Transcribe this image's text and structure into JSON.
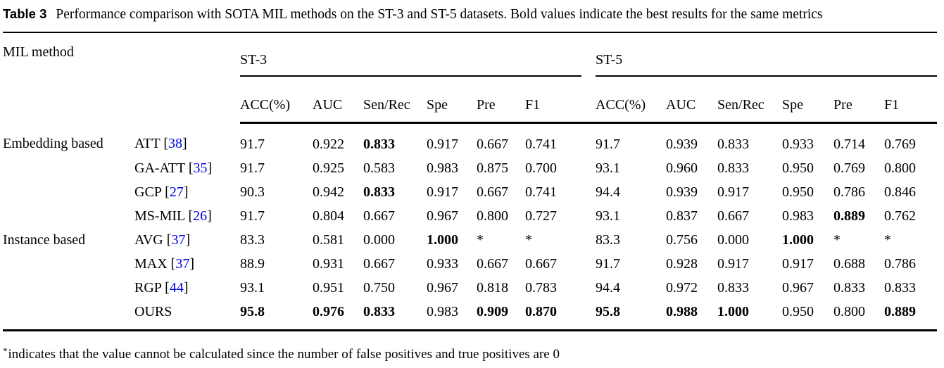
{
  "caption": {
    "label": "Table 3",
    "text": "Performance comparison with SOTA MIL methods on the ST-3 and ST-5 datasets. Bold values indicate the best results for the same metrics"
  },
  "header": {
    "col1": "MIL method",
    "groups": [
      {
        "label": "ST-3",
        "metrics": [
          "ACC(%)",
          "AUC",
          "Sen/Rec",
          "Spe",
          "Pre",
          "F1"
        ]
      },
      {
        "label": "ST-5",
        "metrics": [
          "ACC(%)",
          "AUC",
          "Sen/Rec",
          "Spe",
          "Pre",
          "F1"
        ]
      }
    ]
  },
  "citation_format": {
    "open": " [",
    "close": "]"
  },
  "rows": [
    {
      "group": "Embedding based",
      "method": "ATT",
      "cite": "38",
      "st3": [
        {
          "v": "91.7"
        },
        {
          "v": "0.922"
        },
        {
          "v": "0.833",
          "b": true
        },
        {
          "v": "0.917"
        },
        {
          "v": "0.667"
        },
        {
          "v": "0.741"
        }
      ],
      "st5": [
        {
          "v": "91.7"
        },
        {
          "v": "0.939"
        },
        {
          "v": "0.833"
        },
        {
          "v": "0.933"
        },
        {
          "v": "0.714"
        },
        {
          "v": "0.769"
        }
      ]
    },
    {
      "group": "",
      "method": "GA-ATT",
      "cite": "35",
      "st3": [
        {
          "v": "91.7"
        },
        {
          "v": "0.925"
        },
        {
          "v": "0.583"
        },
        {
          "v": "0.983"
        },
        {
          "v": "0.875"
        },
        {
          "v": "0.700"
        }
      ],
      "st5": [
        {
          "v": "93.1"
        },
        {
          "v": "0.960"
        },
        {
          "v": "0.833"
        },
        {
          "v": "0.950"
        },
        {
          "v": "0.769"
        },
        {
          "v": "0.800"
        }
      ]
    },
    {
      "group": "",
      "method": "GCP",
      "cite": "27",
      "st3": [
        {
          "v": "90.3"
        },
        {
          "v": "0.942"
        },
        {
          "v": "0.833",
          "b": true
        },
        {
          "v": "0.917"
        },
        {
          "v": "0.667"
        },
        {
          "v": "0.741"
        }
      ],
      "st5": [
        {
          "v": "94.4"
        },
        {
          "v": "0.939"
        },
        {
          "v": "0.917"
        },
        {
          "v": "0.950"
        },
        {
          "v": "0.786"
        },
        {
          "v": "0.846"
        }
      ]
    },
    {
      "group": "",
      "method": "MS-MIL",
      "cite": "26",
      "st3": [
        {
          "v": "91.7"
        },
        {
          "v": "0.804"
        },
        {
          "v": "0.667"
        },
        {
          "v": "0.967"
        },
        {
          "v": "0.800"
        },
        {
          "v": "0.727"
        }
      ],
      "st5": [
        {
          "v": "93.1"
        },
        {
          "v": "0.837"
        },
        {
          "v": "0.667"
        },
        {
          "v": "0.983"
        },
        {
          "v": "0.889",
          "b": true
        },
        {
          "v": "0.762"
        }
      ]
    },
    {
      "group": "Instance based",
      "method": "AVG",
      "cite": "37",
      "st3": [
        {
          "v": "83.3"
        },
        {
          "v": "0.581"
        },
        {
          "v": "0.000"
        },
        {
          "v": "1.000",
          "b": true
        },
        {
          "v": "*"
        },
        {
          "v": "*"
        }
      ],
      "st5": [
        {
          "v": "83.3"
        },
        {
          "v": "0.756"
        },
        {
          "v": "0.000"
        },
        {
          "v": "1.000",
          "b": true
        },
        {
          "v": "*"
        },
        {
          "v": "*"
        }
      ]
    },
    {
      "group": "",
      "method": "MAX",
      "cite": "37",
      "st3": [
        {
          "v": "88.9"
        },
        {
          "v": "0.931"
        },
        {
          "v": "0.667"
        },
        {
          "v": "0.933"
        },
        {
          "v": "0.667"
        },
        {
          "v": "0.667"
        }
      ],
      "st5": [
        {
          "v": "91.7"
        },
        {
          "v": "0.928"
        },
        {
          "v": "0.917"
        },
        {
          "v": "0.917"
        },
        {
          "v": "0.688"
        },
        {
          "v": "0.786"
        }
      ]
    },
    {
      "group": "",
      "method": "RGP",
      "cite": "44",
      "st3": [
        {
          "v": "93.1"
        },
        {
          "v": "0.951"
        },
        {
          "v": "0.750"
        },
        {
          "v": "0.967"
        },
        {
          "v": "0.818"
        },
        {
          "v": "0.783"
        }
      ],
      "st5": [
        {
          "v": "94.4"
        },
        {
          "v": "0.972"
        },
        {
          "v": "0.833"
        },
        {
          "v": "0.967"
        },
        {
          "v": "0.833"
        },
        {
          "v": "0.833"
        }
      ]
    },
    {
      "group": "",
      "method": "OURS",
      "cite": "",
      "st3": [
        {
          "v": "95.8",
          "b": true
        },
        {
          "v": "0.976",
          "b": true
        },
        {
          "v": "0.833",
          "b": true
        },
        {
          "v": "0.983"
        },
        {
          "v": "0.909",
          "b": true
        },
        {
          "v": "0.870",
          "b": true
        }
      ],
      "st5": [
        {
          "v": "95.8",
          "b": true
        },
        {
          "v": "0.988",
          "b": true
        },
        {
          "v": "1.000",
          "b": true
        },
        {
          "v": "0.950"
        },
        {
          "v": "0.800"
        },
        {
          "v": "0.889",
          "b": true
        }
      ]
    }
  ],
  "footnote": {
    "marker": "*",
    "text": "indicates that the value cannot be calculated since the number of false positives and true positives are 0"
  },
  "colors": {
    "citation_blue": "#0000ee",
    "text": "#000000",
    "background": "#ffffff"
  }
}
